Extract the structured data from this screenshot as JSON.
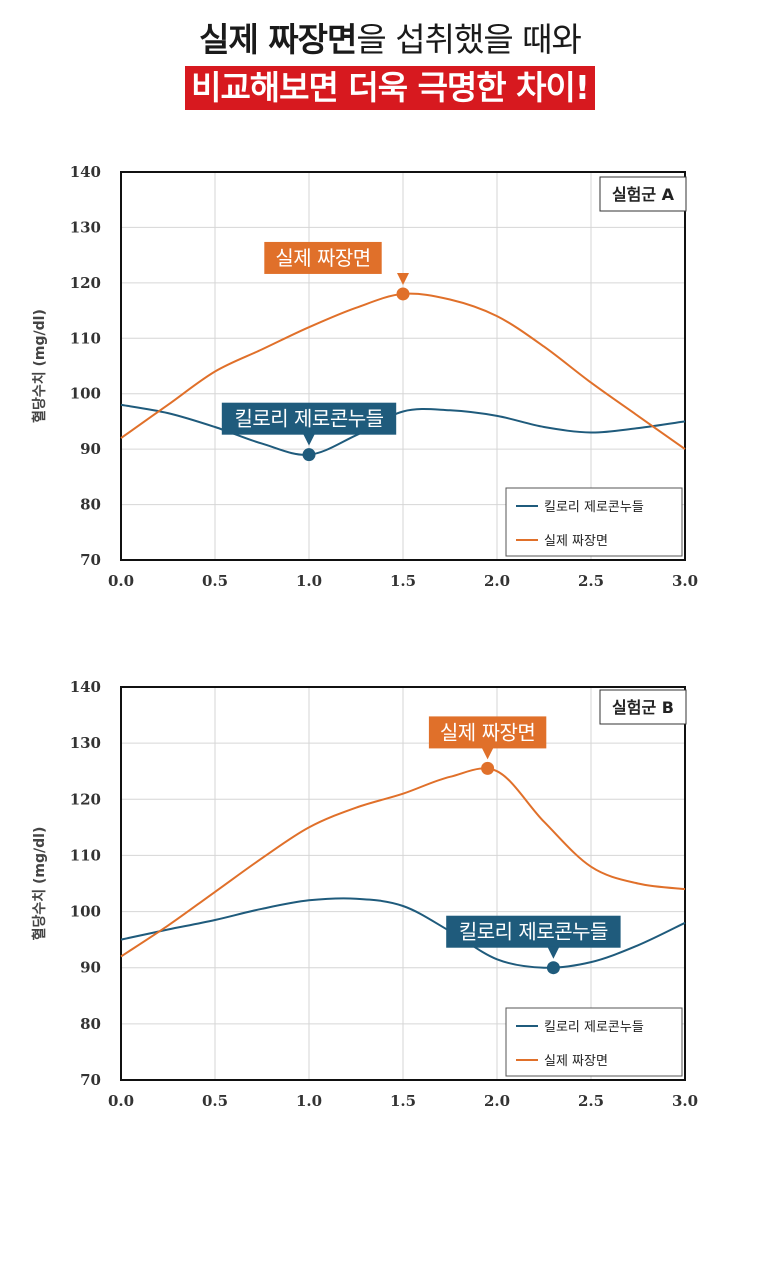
{
  "header": {
    "title_bold": "실제 짜장면",
    "title_rest": "을 섭취했을 때와",
    "banner": "비교해보면 더욱 극명한 차이!"
  },
  "colors": {
    "zero_noodle": "#1f5b7c",
    "jjajang": "#e0702a",
    "banner": "#d7191f"
  },
  "chart_data": [
    {
      "type": "line",
      "group_label": "실험군 A",
      "ylabel": "혈당수치 (mg/dl)",
      "xlim": [
        0,
        3.0
      ],
      "ylim": [
        70,
        140
      ],
      "xticks": [
        "0.0",
        "0.5",
        "1.0",
        "1.5",
        "2.0",
        "2.5",
        "3.0"
      ],
      "yticks": [
        "70",
        "80",
        "90",
        "100",
        "110",
        "120",
        "130",
        "140"
      ],
      "grid": true,
      "legend_position": "bottom-right",
      "series": [
        {
          "name": "킬로리 제로콘누들",
          "color": "#1f5b7c",
          "x": [
            0.0,
            0.25,
            0.5,
            0.75,
            1.0,
            1.25,
            1.5,
            1.75,
            2.0,
            2.25,
            2.5,
            2.75,
            3.0
          ],
          "y": [
            98,
            96.5,
            94,
            91,
            89,
            92.5,
            96.8,
            97,
            96,
            94,
            93,
            93.8,
            95
          ],
          "marker": {
            "x": 1.0,
            "y": 89
          },
          "callout": "킬로리 제로콘누들"
        },
        {
          "name": "실제 짜장면",
          "color": "#e0702a",
          "x": [
            0.0,
            0.25,
            0.5,
            0.75,
            1.0,
            1.25,
            1.5,
            1.75,
            2.0,
            2.25,
            2.5,
            2.75,
            3.0
          ],
          "y": [
            92,
            98,
            104,
            108,
            112,
            115.5,
            118,
            117,
            114,
            108.5,
            102,
            96,
            90
          ],
          "marker": {
            "x": 1.5,
            "y": 118
          },
          "callout": "실제 짜장면"
        }
      ]
    },
    {
      "type": "line",
      "group_label": "실험군 B",
      "ylabel": "혈당수치 (mg/dl)",
      "xlim": [
        0,
        3.0
      ],
      "ylim": [
        70,
        140
      ],
      "xticks": [
        "0.0",
        "0.5",
        "1.0",
        "1.5",
        "2.0",
        "2.5",
        "3.0"
      ],
      "yticks": [
        "70",
        "80",
        "90",
        "100",
        "110",
        "120",
        "130",
        "140"
      ],
      "grid": true,
      "legend_position": "bottom-right",
      "series": [
        {
          "name": "킬로리 제로콘누들",
          "color": "#1f5b7c",
          "x": [
            0.0,
            0.25,
            0.5,
            0.75,
            1.0,
            1.25,
            1.5,
            1.75,
            2.0,
            2.25,
            2.5,
            2.75,
            3.0
          ],
          "y": [
            95,
            96.8,
            98.5,
            100.5,
            102,
            102.3,
            101,
            96.5,
            91.5,
            90,
            91,
            94,
            98
          ],
          "marker": {
            "x": 2.3,
            "y": 90
          },
          "callout": "킬로리 제로콘누들"
        },
        {
          "name": "실제 짜장면",
          "color": "#e0702a",
          "x": [
            0.0,
            0.25,
            0.5,
            0.75,
            1.0,
            1.25,
            1.5,
            1.75,
            2.0,
            2.25,
            2.5,
            2.75,
            3.0
          ],
          "y": [
            92,
            97.5,
            103.5,
            109.5,
            115,
            118.5,
            121,
            124,
            125,
            116,
            108,
            105,
            104
          ],
          "marker": {
            "x": 1.95,
            "y": 125.5
          },
          "callout": "실제 짜장면"
        }
      ]
    }
  ]
}
